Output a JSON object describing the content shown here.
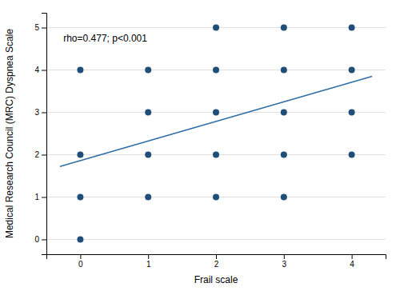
{
  "chart_data": {
    "type": "scatter",
    "x": [
      0,
      0,
      0,
      0,
      1,
      1,
      1,
      1,
      2,
      2,
      2,
      2,
      2,
      3,
      3,
      3,
      3,
      3,
      4,
      4,
      4,
      4
    ],
    "values": [
      0,
      1,
      2,
      4,
      1,
      2,
      3,
      4,
      1,
      2,
      3,
      4,
      5,
      1,
      2,
      3,
      4,
      5,
      2,
      3,
      4,
      5
    ],
    "color": "#1f4e79",
    "trendline": {
      "type": "line",
      "x": [
        -0.3,
        4.3
      ],
      "values": [
        1.72,
        3.85
      ],
      "color": "#2e6da4"
    },
    "annotation": "rho=0.477; p<0.001",
    "xlabel": "Frail scale",
    "ylabel": "Medical Research Council (MRC) Dyspnea Scale",
    "xlim": [
      -0.5,
      4.5
    ],
    "ylim": [
      -0.35,
      5.35
    ],
    "xticks": [
      0,
      1,
      2,
      3,
      4
    ],
    "yticks": [
      0,
      1,
      2,
      3,
      4,
      5
    ],
    "grid": "y"
  }
}
